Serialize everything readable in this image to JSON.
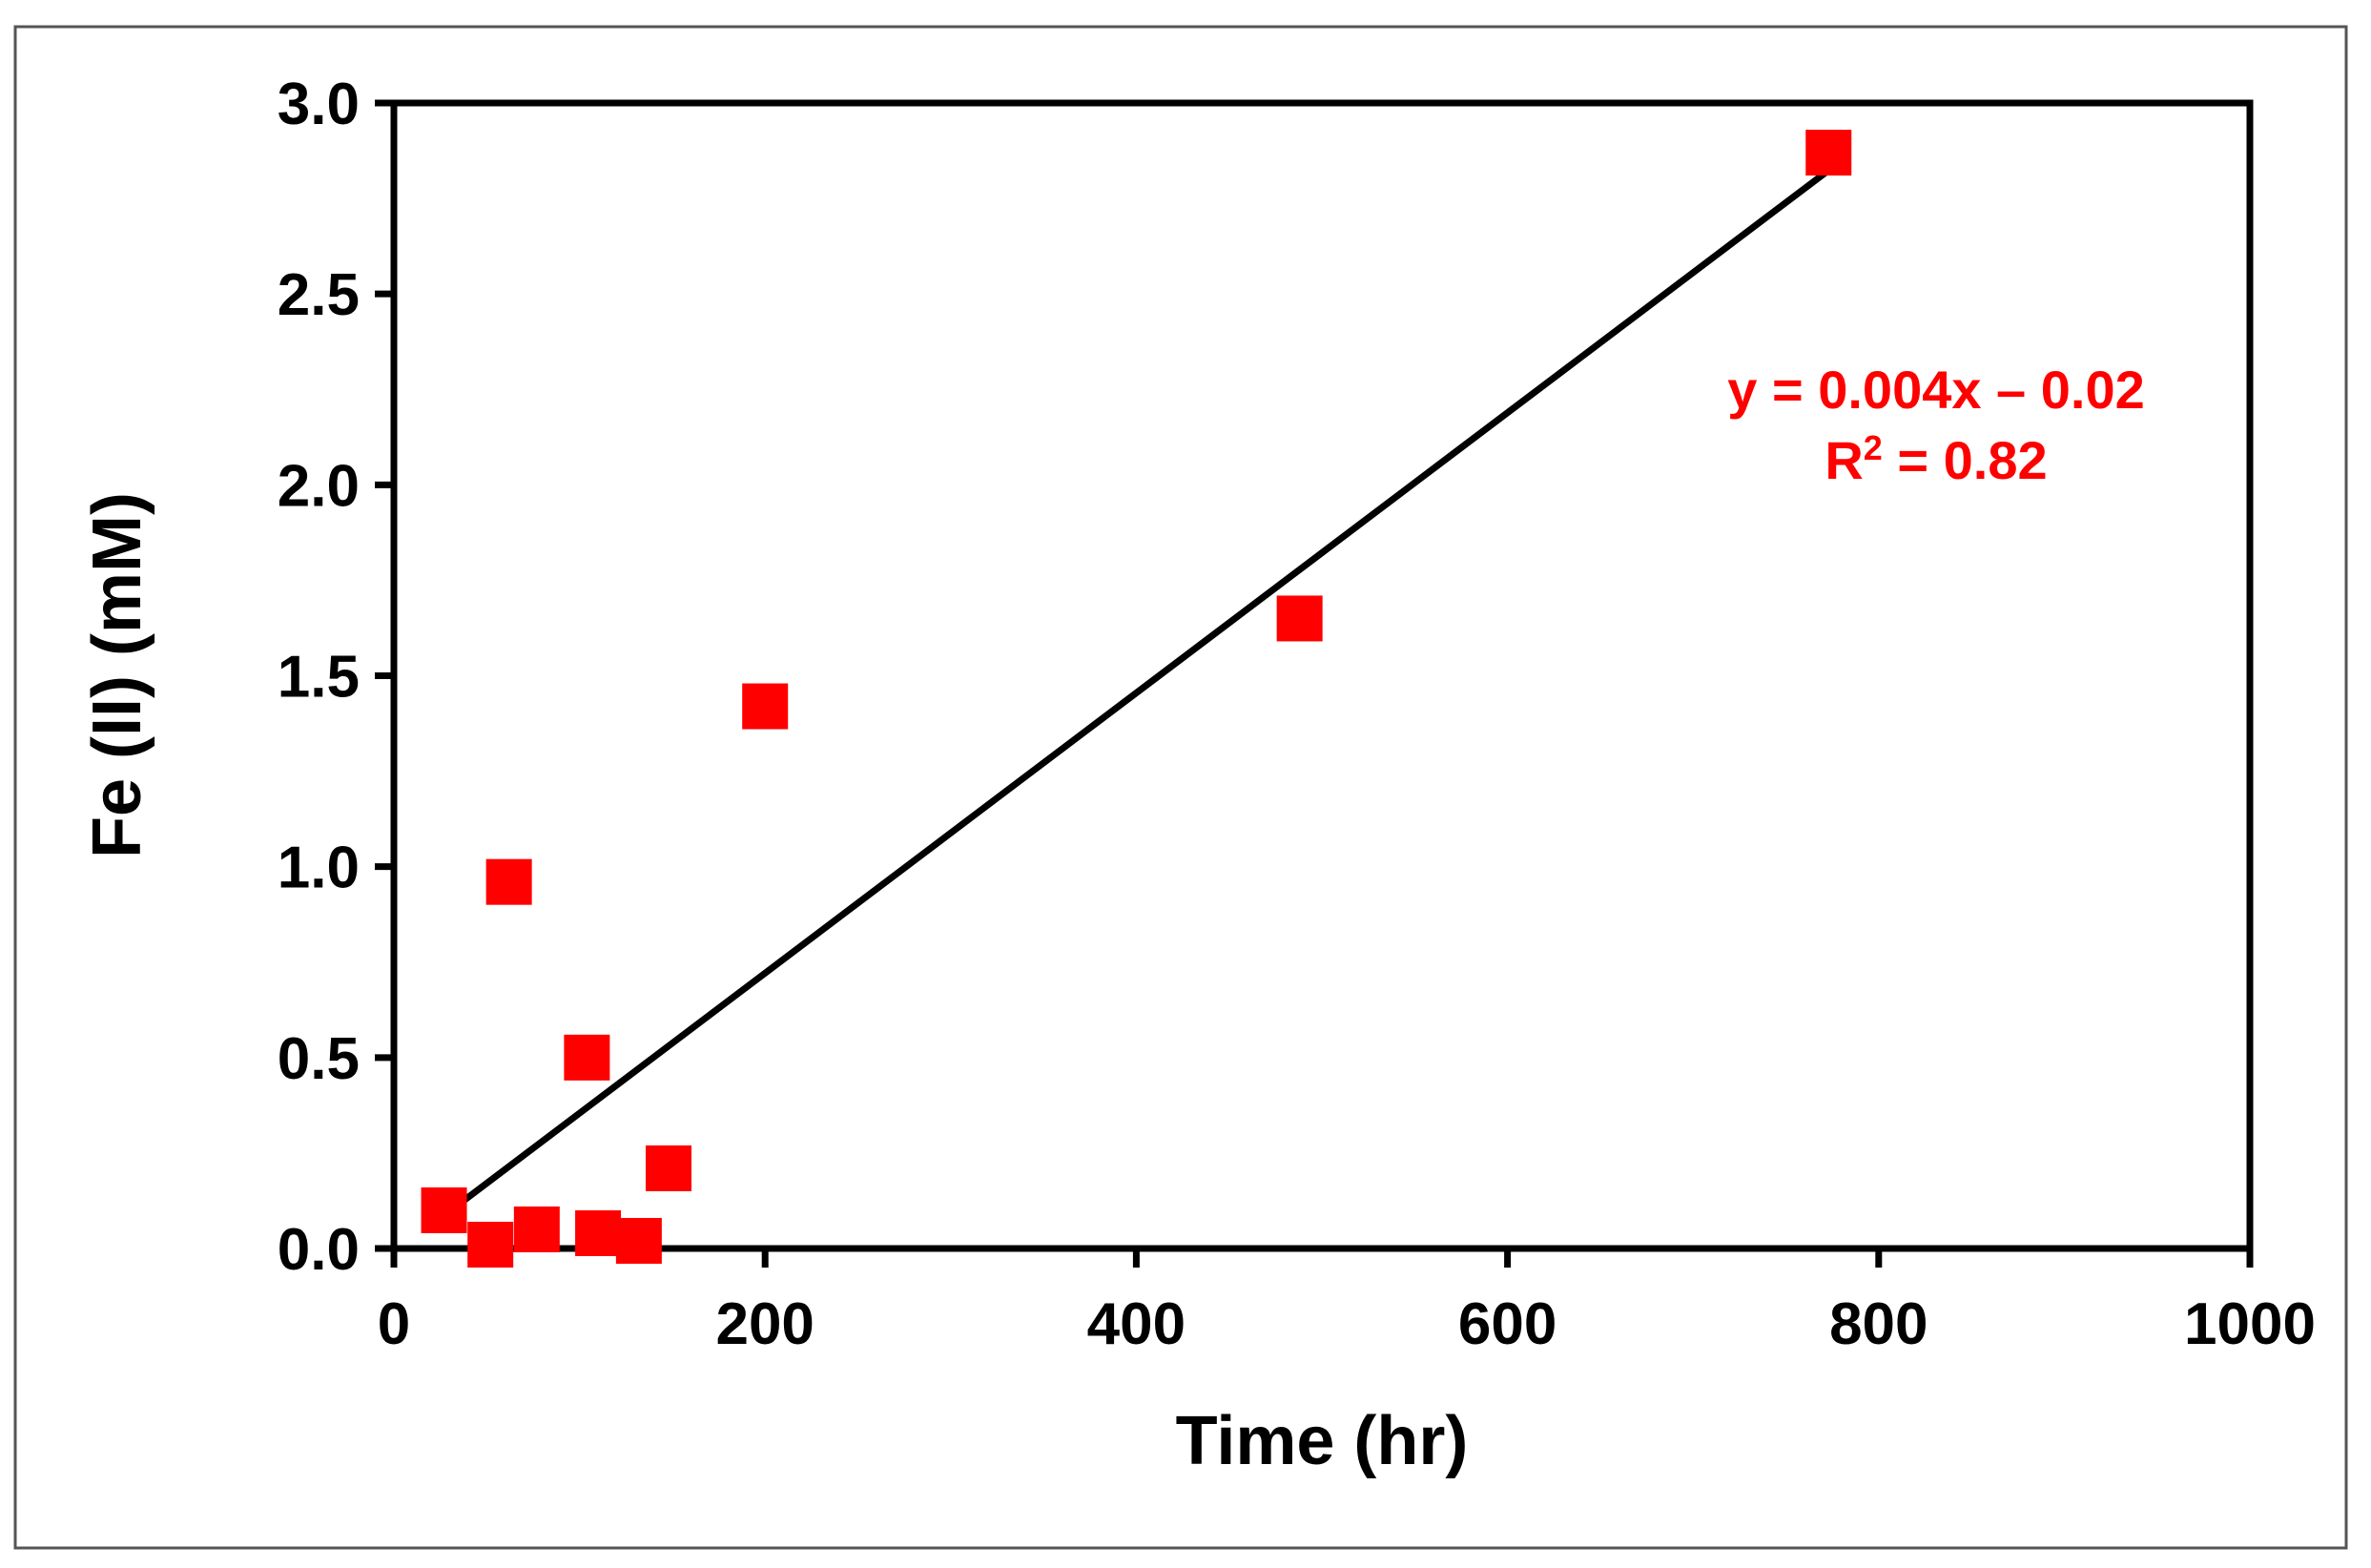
{
  "chart_data": {
    "type": "scatter",
    "title": "",
    "xlabel": "Time (hr)",
    "ylabel": "Fe (II) (mM)",
    "xlim": [
      0,
      1000
    ],
    "ylim": [
      0,
      3.0
    ],
    "x_ticks": [
      0,
      200,
      400,
      600,
      800,
      1000
    ],
    "y_ticks": [
      0,
      0.5,
      1.0,
      1.5,
      2.0,
      2.5,
      3.0
    ],
    "x_tick_labels": [
      "0",
      "200",
      "400",
      "600",
      "800",
      "1000"
    ],
    "y_tick_labels": [
      "0.0",
      "0.5",
      "1.0",
      "1.5",
      "2.0",
      "2.5",
      "3.0"
    ],
    "grid": false,
    "series": [
      {
        "name": "Fe (II)",
        "marker": "square",
        "color": "#ff0000",
        "points": [
          {
            "x": 27,
            "y": 0.1
          },
          {
            "x": 52,
            "y": 0.01
          },
          {
            "x": 62,
            "y": 0.96
          },
          {
            "x": 77,
            "y": 0.05
          },
          {
            "x": 104,
            "y": 0.5
          },
          {
            "x": 110,
            "y": 0.04
          },
          {
            "x": 132,
            "y": 0.02
          },
          {
            "x": 148,
            "y": 0.21
          },
          {
            "x": 200,
            "y": 1.42
          },
          {
            "x": 488,
            "y": 1.65
          },
          {
            "x": 773,
            "y": 2.87
          }
        ]
      }
    ],
    "trendline": {
      "type": "linear",
      "color": "#000000",
      "x_start": 28,
      "y_start": 0.09,
      "x_end": 772,
      "y_end": 2.82,
      "equation": "y = 0.004x – 0.02",
      "r2_label": "R",
      "r2_superscript": "2",
      "r2_value": " = 0.82",
      "annotation_color": "#ff0000"
    }
  }
}
